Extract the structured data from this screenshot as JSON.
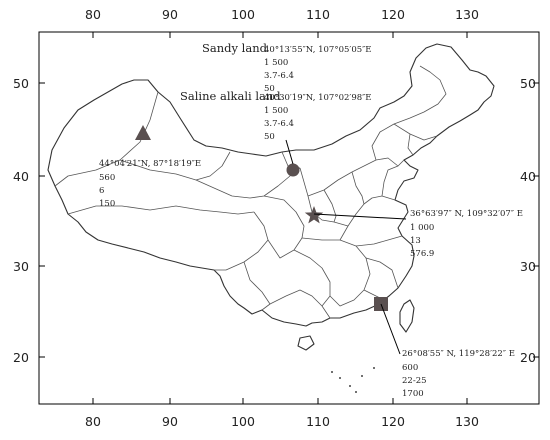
{
  "map": {
    "x_ticks": [
      "80",
      "90",
      "100",
      "110",
      "120",
      "130"
    ],
    "y_ticks": [
      "50",
      "40",
      "30",
      "20"
    ],
    "sites": [
      {
        "id": "sandy",
        "symbol": "circle",
        "title": "Sandy land",
        "lines": [
          "40°13′55″N, 107°05′05″E",
          "1 500",
          "3.7-6.4",
          "50"
        ]
      },
      {
        "id": "saline",
        "symbol": "circle",
        "title": "Saline alkali land",
        "lines": [
          "40°30′19″N, 107°02′98″E",
          "1 500",
          "3.7-6.4",
          "50"
        ]
      },
      {
        "id": "xinjiang",
        "symbol": "triangle",
        "title": "",
        "lines": [
          "44°04′21″N, 87°18′19″E",
          "560",
          "6",
          "150"
        ]
      },
      {
        "id": "shaanxi",
        "symbol": "star",
        "title": "",
        "lines": [
          "36°63′97″ N, 109°32′07″ E",
          "1 000",
          "13",
          "576.9"
        ]
      },
      {
        "id": "fujian",
        "symbol": "square",
        "title": "",
        "lines": [
          "26°08′55″ N, 119°28′22″ E",
          "600",
          "22-25",
          "1700"
        ]
      }
    ],
    "colors": {
      "marker": "#555555",
      "outline": "#333333",
      "frame": "#000000"
    }
  }
}
